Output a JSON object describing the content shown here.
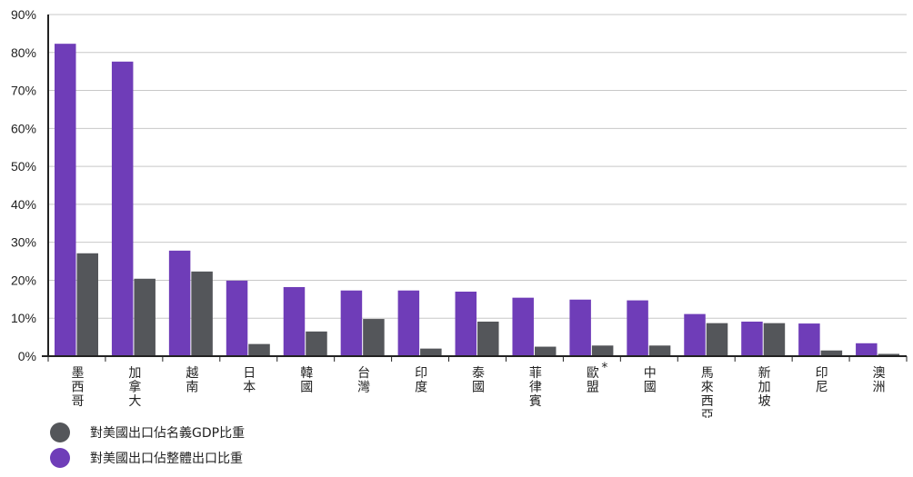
{
  "chart_data": {
    "type": "bar",
    "categories": [
      "墨西哥",
      "加拿大",
      "越南",
      "日本",
      "韓國",
      "台灣",
      "印度",
      "泰國",
      "菲律賓",
      "歐盟",
      "中國",
      "馬來西亞",
      "新加坡",
      "印尼",
      "澳洲"
    ],
    "category_notes": {
      "歐盟": "*"
    },
    "series": [
      {
        "name": "對美國出口佔整體出口比重",
        "color": "#6f3db8",
        "values": [
          82.3,
          77.6,
          27.8,
          19.9,
          18.2,
          17.3,
          17.3,
          17.0,
          15.4,
          14.9,
          14.7,
          11.1,
          9.1,
          8.6,
          3.4
        ]
      },
      {
        "name": "對美國出口佔名義GDP比重",
        "color": "#54565a",
        "values": [
          27.1,
          20.4,
          22.3,
          3.2,
          6.5,
          9.8,
          2.0,
          9.1,
          2.5,
          2.8,
          2.8,
          8.7,
          8.7,
          1.5,
          0.6
        ]
      }
    ],
    "yticks": [
      "0%",
      "10%",
      "20%",
      "30%",
      "40%",
      "50%",
      "60%",
      "70%",
      "80%",
      "90%"
    ],
    "ylim": [
      0,
      90
    ],
    "grid": true,
    "legend_position": "bottom-left",
    "title": "",
    "xlabel": "",
    "ylabel": ""
  },
  "legend": {
    "items": [
      {
        "label": "對美國出口佔名義GDP比重",
        "color": "#54565a"
      },
      {
        "label": "對美國出口佔整體出口比重",
        "color": "#6f3db8"
      }
    ]
  }
}
